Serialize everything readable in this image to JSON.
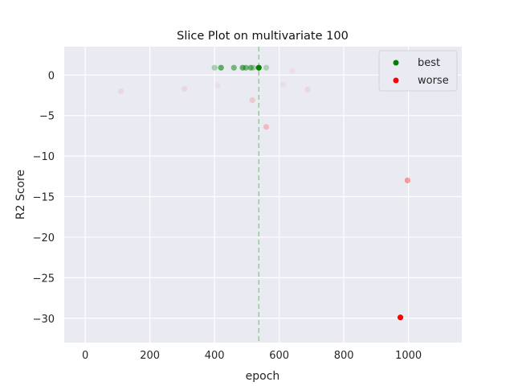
{
  "chart_data": {
    "type": "scatter",
    "title": "Slice Plot on multivariate 100",
    "xlabel": "epoch",
    "ylabel": "R2 Score",
    "xlim": [
      -65,
      1165
    ],
    "ylim": [
      -33,
      3.5
    ],
    "x_ticks": [
      0,
      200,
      400,
      600,
      800,
      1000
    ],
    "y_ticks": [
      0,
      -5,
      -10,
      -15,
      -20,
      -25,
      -30
    ],
    "x_tick_labels": [
      "0",
      "200",
      "400",
      "600",
      "800",
      "1000"
    ],
    "y_tick_labels": [
      "0",
      "−5",
      "−10",
      "−15",
      "−20",
      "−25",
      "−30"
    ],
    "grid": true,
    "legend_position": "top-right",
    "best_epoch_line": 537,
    "colors": {
      "best": "#008000",
      "worse": "#ff0000",
      "background": "#eaeaf2",
      "grid": "#ffffff",
      "vline": "#90c090"
    },
    "series": [
      {
        "name": "best",
        "color": "#008000",
        "points": [
          {
            "x": 400,
            "y": 0.9,
            "opacity": 0.3
          },
          {
            "x": 420,
            "y": 0.9,
            "opacity": 0.6
          },
          {
            "x": 460,
            "y": 0.9,
            "opacity": 0.5
          },
          {
            "x": 487,
            "y": 0.9,
            "opacity": 0.6
          },
          {
            "x": 497,
            "y": 0.9,
            "opacity": 0.5
          },
          {
            "x": 512,
            "y": 0.9,
            "opacity": 0.55
          },
          {
            "x": 520,
            "y": 0.9,
            "opacity": 0.3
          },
          {
            "x": 537,
            "y": 0.9,
            "opacity": 1.0
          },
          {
            "x": 560,
            "y": 0.9,
            "opacity": 0.25
          }
        ]
      },
      {
        "name": "worse",
        "color": "#ff0000",
        "points": [
          {
            "x": 110,
            "y": -2.0,
            "opacity": 0.08
          },
          {
            "x": 307,
            "y": -1.7,
            "opacity": 0.08
          },
          {
            "x": 410,
            "y": -1.3,
            "opacity": 0.05
          },
          {
            "x": 517,
            "y": -3.1,
            "opacity": 0.15
          },
          {
            "x": 560,
            "y": -6.4,
            "opacity": 0.2
          },
          {
            "x": 612,
            "y": -1.2,
            "opacity": 0.05
          },
          {
            "x": 640,
            "y": 0.5,
            "opacity": 0.05
          },
          {
            "x": 688,
            "y": -1.8,
            "opacity": 0.08
          },
          {
            "x": 997,
            "y": -13.0,
            "opacity": 0.35
          },
          {
            "x": 975,
            "y": -29.9,
            "opacity": 1.0
          }
        ]
      }
    ],
    "legend": [
      {
        "label": "best",
        "color": "#008000"
      },
      {
        "label": "worse",
        "color": "#ff0000"
      }
    ]
  }
}
